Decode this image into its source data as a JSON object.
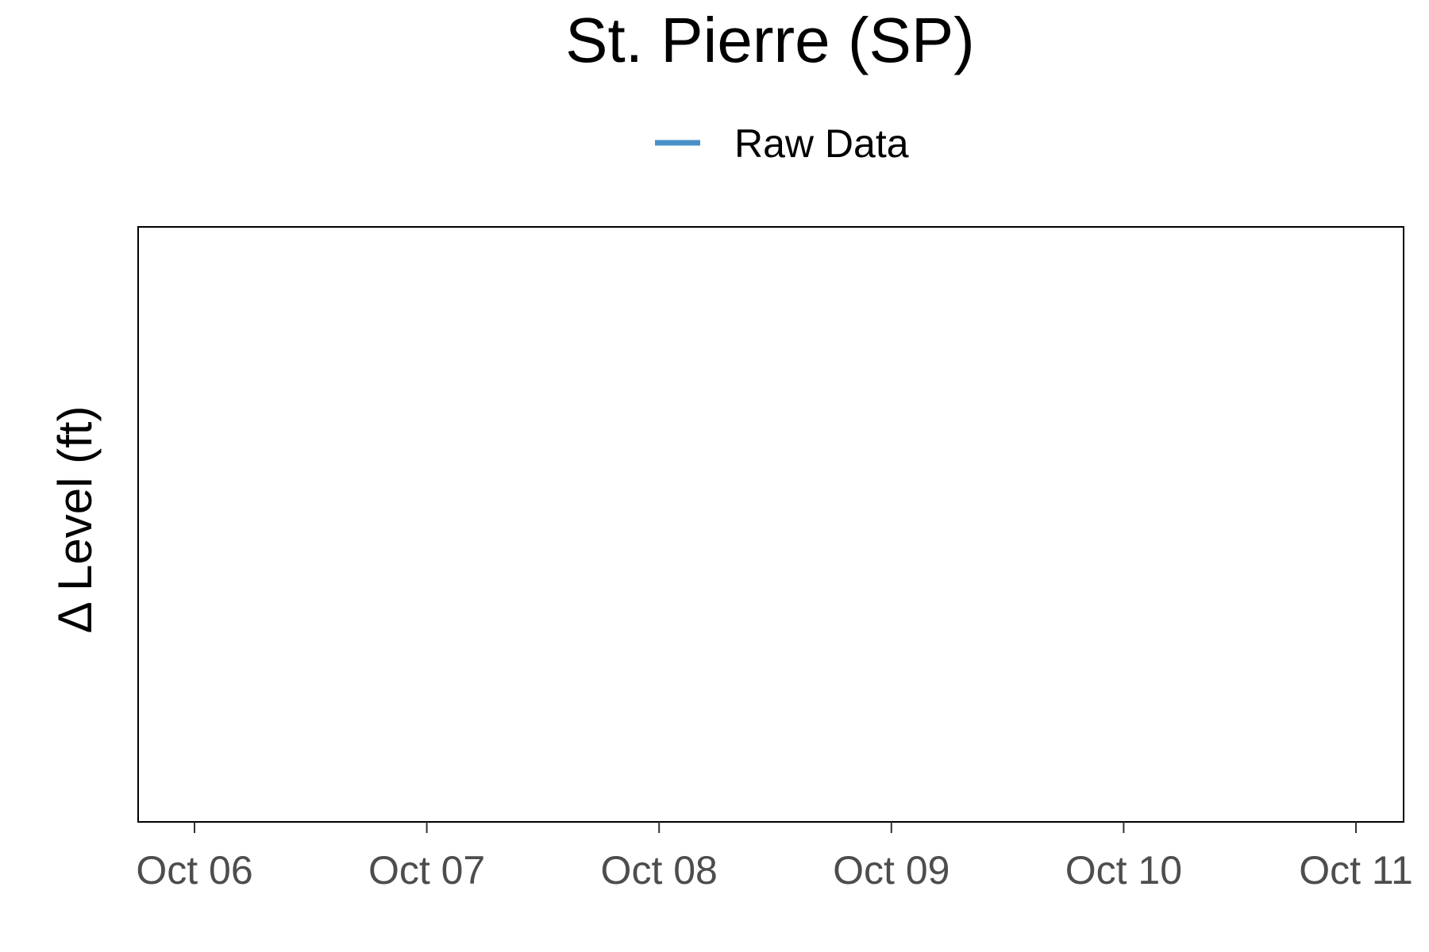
{
  "chart_data": {
    "type": "line",
    "title": "St. Pierre (SP)",
    "xlabel": "",
    "ylabel": "Δ Level (ft)",
    "x_ticks": [
      "Oct 06",
      "Oct 07",
      "Oct 08",
      "Oct 09",
      "Oct 10",
      "Oct 11"
    ],
    "series": [
      {
        "name": "Raw Data",
        "color": "#4A90C8",
        "values": []
      }
    ],
    "legend_position": "top",
    "grid": false
  }
}
